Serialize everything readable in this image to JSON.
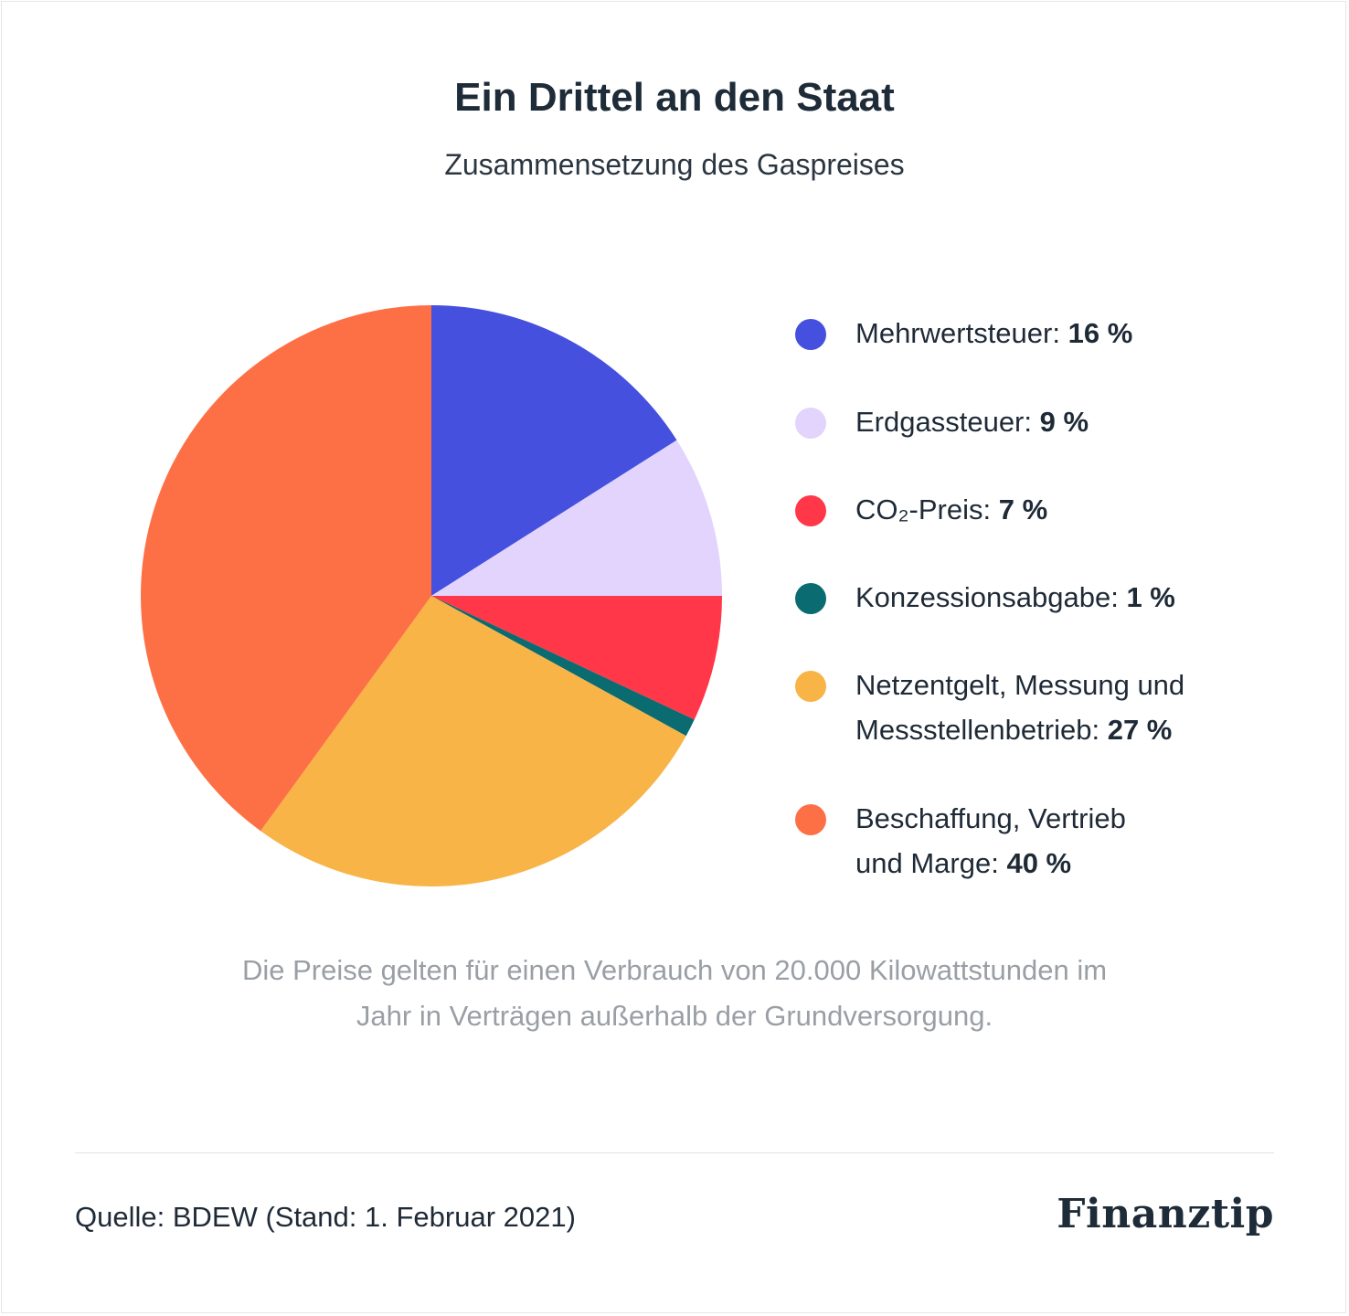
{
  "title": "Ein Drittel an den Staat",
  "subtitle": "Zusammensetzung des Gaspreises",
  "chart_data": {
    "type": "pie",
    "title": "Ein Drittel an den Staat",
    "subtitle": "Zusammensetzung des Gaspreises",
    "legend_position": "right",
    "slices": [
      {
        "label": "Mehrwertsteuer:",
        "value": 16,
        "display": "16 %",
        "color": "#4550df"
      },
      {
        "label": "Erdgassteuer:",
        "value": 9,
        "display": "9 %",
        "color": "#e2d4fc"
      },
      {
        "label": "CO₂-Preis:",
        "value": 7,
        "display": "7 %",
        "color": "#ff3748"
      },
      {
        "label": "Konzessionsabgabe:",
        "value": 1,
        "display": "1 %",
        "color": "#0a6b70"
      },
      {
        "label": "Netzentgelt, Messung und Messstellenbetrieb:",
        "value": 27,
        "display": "27 %",
        "color": "#f8b446"
      },
      {
        "label": "Beschaffung, Vertrieb und Marge:",
        "value": 40,
        "display": "40 %",
        "color": "#fd7046"
      }
    ]
  },
  "legend": [
    {
      "label": "Mehrwertsteuer:",
      "value": "16 %"
    },
    {
      "label_line1": "Erdgassteuer:",
      "value": "9 %"
    },
    {
      "label": "CO₂-Preis:",
      "value": "7 %"
    },
    {
      "label": "Konzessionsabgabe:",
      "value": "1 %"
    },
    {
      "line1": "Netzentgelt, Messung und",
      "line2": "Messstellenbetrieb:",
      "value": "27 %"
    },
    {
      "line1": "Beschaffung, Vertrieb",
      "line2": "und Marge:",
      "value": "40 %"
    }
  ],
  "note": {
    "line1": "Die Preise gelten für einen Verbrauch von 20.000 Kilowattstunden im",
    "line2": "Jahr in Verträgen außerhalb der Grundversorgung."
  },
  "footer": {
    "source": "Quelle: BDEW (Stand: 1. Februar 2021)",
    "logo": "Finanztip"
  }
}
